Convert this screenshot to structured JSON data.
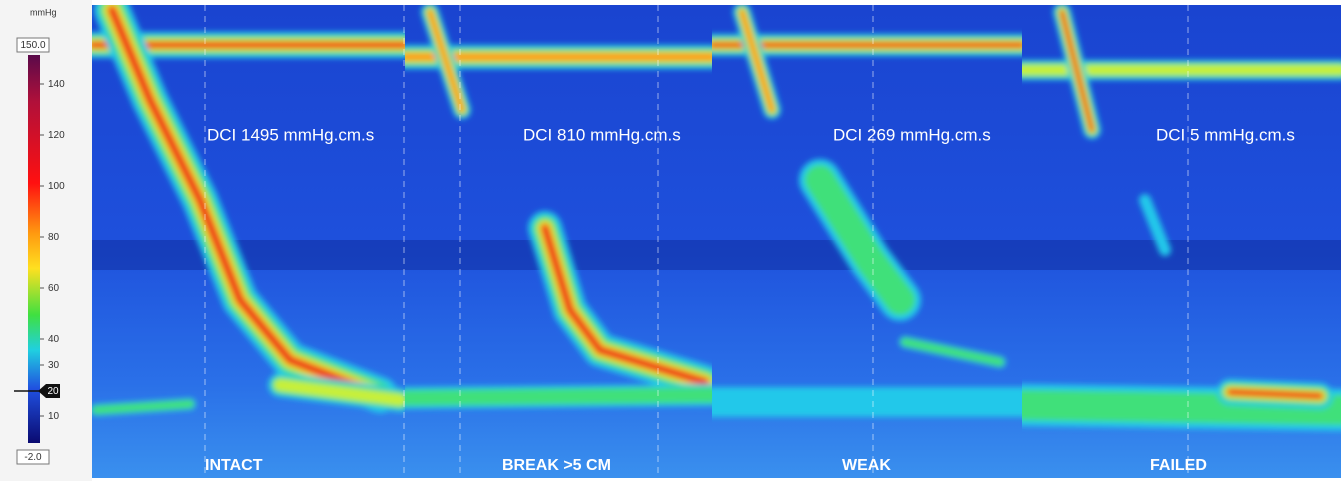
{
  "colorbar": {
    "unit": "mmHg",
    "max": "150.0",
    "min": "-2.0",
    "ticks": [
      140,
      120,
      100,
      80,
      60,
      40,
      30,
      20,
      10
    ]
  },
  "panels": [
    {
      "dci": "DCI 1495 mmHg.cm.s",
      "label": "INTACT"
    },
    {
      "dci": "DCI 810 mmHg.cm.s",
      "label": "BREAK >5 CM"
    },
    {
      "dci": "DCI 269 mmHg.cm.s",
      "label": "WEAK"
    },
    {
      "dci": "DCI 5 mmHg.cm.s",
      "label": "FAILED"
    }
  ]
}
